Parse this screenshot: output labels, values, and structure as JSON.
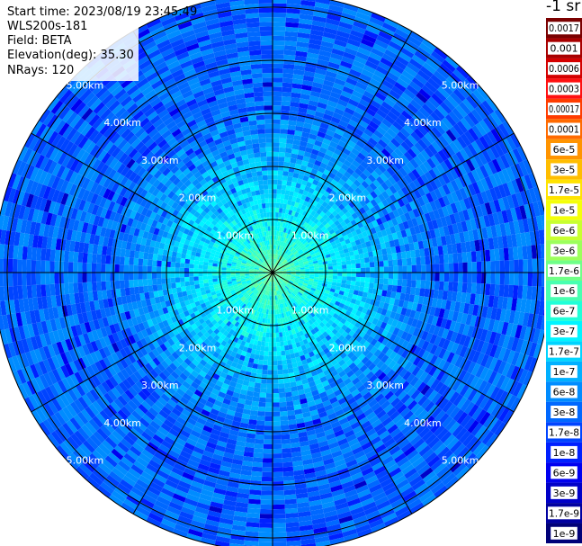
{
  "info": {
    "start_time": "Start time: 2023/08/19 23:45:49",
    "instrument": "WLS200s-181",
    "field": "Field: BETA",
    "elevation": "Elevation(deg): 35.30",
    "nrays": "NRays: 120"
  },
  "colorbar": {
    "unit_title": "-1 sr",
    "labels": [
      "0.0017",
      "0.001",
      "0.0006",
      "0.0003",
      "0.00017",
      "0.0001",
      "6e-5",
      "3e-5",
      "1.7e-5",
      "1e-5",
      "6e-6",
      "3e-6",
      "1.7e-6",
      "1e-6",
      "6e-7",
      "3e-7",
      "1.7e-7",
      "1e-7",
      "6e-8",
      "3e-8",
      "1.7e-8",
      "1e-8",
      "6e-9",
      "3e-9",
      "1.7e-9",
      "1e-9"
    ],
    "colors": [
      "#7a0000",
      "#a80000",
      "#d40000",
      "#ff1010",
      "#ff3c00",
      "#ff6a00",
      "#ff9400",
      "#ffbd00",
      "#ffe300",
      "#f4ff08",
      "#c8ff30",
      "#9cff5c",
      "#70ff88",
      "#48ffb0",
      "#20ffd8",
      "#00f4ff",
      "#00d4ff",
      "#00b0ff",
      "#008cff",
      "#0068ff",
      "#0044ff",
      "#0020ff",
      "#0000f0",
      "#0000c8",
      "#0000a0",
      "#000078"
    ]
  },
  "chart_data": {
    "type": "heatmap",
    "projection": "polar-ppi",
    "field": "BETA",
    "nrays": 120,
    "elevation_deg": 35.3,
    "range_rings_km": [
      1,
      2,
      3,
      4,
      5
    ],
    "ring_labels": [
      "1.00km",
      "2.00km",
      "3.00km",
      "4.00km",
      "5.00km"
    ],
    "max_range_km": 5.25,
    "radial_spokes_deg": [
      0,
      30,
      60,
      90,
      120,
      150,
      180,
      210,
      240,
      270,
      300,
      330
    ],
    "near_range_value": 1.7e-06,
    "far_range_value": 3e-08
  }
}
